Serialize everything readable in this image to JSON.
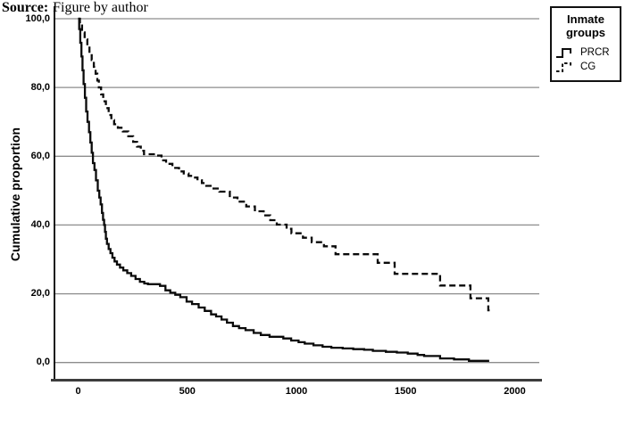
{
  "source": {
    "prefix": "Source:",
    "text": "Figure by author"
  },
  "y_axis": {
    "title": "Cumulative proportion",
    "ticks": [
      "100,0",
      "80,0",
      "60,0",
      "40,0",
      "20,0",
      "0,0"
    ],
    "tick_values": [
      100,
      80,
      60,
      40,
      20,
      0
    ]
  },
  "x_axis": {
    "ticks": [
      "0",
      "500",
      "1000",
      "1500",
      "2000"
    ],
    "tick_values": [
      0,
      500,
      1000,
      1500,
      2000
    ]
  },
  "legend": {
    "title": "Inmate groups",
    "items": [
      {
        "label": "PRCR",
        "style": "solid"
      },
      {
        "label": "CG",
        "style": "dashed"
      }
    ]
  },
  "colors": {
    "curve": "#0a0a0a",
    "gridline": "#8c8c8c",
    "axis_bottom": "#3d3d3d",
    "axis_left": "#000000",
    "background": "#ffffff"
  },
  "chart_data": {
    "type": "line",
    "subtype": "kaplan-meier-step",
    "interpolation": "step-after",
    "title": "",
    "xlabel": "",
    "ylabel": "Cumulative proportion",
    "xlim": [
      0,
      2000
    ],
    "ylim": [
      0,
      100
    ],
    "grid": "horizontal",
    "legend_position": "top-right",
    "series": [
      {
        "name": "PRCR",
        "line_style": "solid",
        "points": [
          [
            0,
            100
          ],
          [
            5,
            97
          ],
          [
            10,
            93
          ],
          [
            15,
            89
          ],
          [
            20,
            85
          ],
          [
            25,
            81
          ],
          [
            31,
            77
          ],
          [
            37,
            73
          ],
          [
            43,
            70
          ],
          [
            50,
            67
          ],
          [
            56,
            64
          ],
          [
            62,
            61
          ],
          [
            68,
            58
          ],
          [
            75,
            56
          ],
          [
            82,
            53
          ],
          [
            90,
            50
          ],
          [
            97,
            48
          ],
          [
            103,
            46
          ],
          [
            109,
            43.5
          ],
          [
            114,
            41.5
          ],
          [
            119,
            40
          ],
          [
            123,
            38
          ],
          [
            127,
            36
          ],
          [
            132,
            34.5
          ],
          [
            140,
            33
          ],
          [
            148,
            31.8
          ],
          [
            157,
            30.5
          ],
          [
            167,
            29.4
          ],
          [
            178,
            28.5
          ],
          [
            192,
            27.6
          ],
          [
            207,
            26.8
          ],
          [
            225,
            26
          ],
          [
            243,
            25.2
          ],
          [
            263,
            24.3
          ],
          [
            283,
            23.5
          ],
          [
            303,
            23
          ],
          [
            320,
            22.8
          ],
          [
            375,
            22.3
          ],
          [
            400,
            21
          ],
          [
            422,
            20.3
          ],
          [
            445,
            19.7
          ],
          [
            468,
            19
          ],
          [
            497,
            17.7
          ],
          [
            522,
            17
          ],
          [
            552,
            16
          ],
          [
            580,
            15
          ],
          [
            609,
            14
          ],
          [
            632,
            13.4
          ],
          [
            657,
            12.5
          ],
          [
            682,
            11.6
          ],
          [
            709,
            10.6
          ],
          [
            737,
            10
          ],
          [
            767,
            9.4
          ],
          [
            804,
            8.6
          ],
          [
            837,
            8
          ],
          [
            877,
            7.5
          ],
          [
            940,
            7
          ],
          [
            976,
            6.4
          ],
          [
            1010,
            5.9
          ],
          [
            1038,
            5.5
          ],
          [
            1078,
            5
          ],
          [
            1120,
            4.6
          ],
          [
            1160,
            4.3
          ],
          [
            1212,
            4.1
          ],
          [
            1260,
            3.9
          ],
          [
            1310,
            3.7
          ],
          [
            1350,
            3.4
          ],
          [
            1410,
            3.1
          ],
          [
            1460,
            2.9
          ],
          [
            1510,
            2.6
          ],
          [
            1555,
            2.2
          ],
          [
            1585,
            1.9
          ],
          [
            1658,
            1.2
          ],
          [
            1722,
            0.9
          ],
          [
            1790,
            0.5
          ],
          [
            1883,
            0.5
          ]
        ]
      },
      {
        "name": "CG",
        "line_style": "dashed",
        "points": [
          [
            0,
            100
          ],
          [
            8,
            98
          ],
          [
            18,
            96
          ],
          [
            30,
            94
          ],
          [
            42,
            92
          ],
          [
            52,
            90
          ],
          [
            62,
            88
          ],
          [
            72,
            86
          ],
          [
            80,
            84
          ],
          [
            88,
            82
          ],
          [
            95,
            80
          ],
          [
            105,
            78
          ],
          [
            115,
            76
          ],
          [
            127,
            74
          ],
          [
            140,
            72
          ],
          [
            152,
            70.5
          ],
          [
            165,
            69.3
          ],
          [
            182,
            68.3
          ],
          [
            205,
            67.2
          ],
          [
            230,
            65.8
          ],
          [
            252,
            64.2
          ],
          [
            270,
            62.8
          ],
          [
            287,
            61.6
          ],
          [
            302,
            60.6
          ],
          [
            358,
            60.2
          ],
          [
            382,
            58.8
          ],
          [
            403,
            57.8
          ],
          [
            432,
            56.6
          ],
          [
            462,
            55.6
          ],
          [
            484,
            55
          ],
          [
            506,
            54.3
          ],
          [
            525,
            53.8
          ],
          [
            547,
            53
          ],
          [
            567,
            52.2
          ],
          [
            587,
            51.4
          ],
          [
            615,
            50.6
          ],
          [
            647,
            49.7
          ],
          [
            695,
            48
          ],
          [
            730,
            46.8
          ],
          [
            770,
            45.4
          ],
          [
            810,
            44
          ],
          [
            850,
            42.8
          ],
          [
            880,
            41.4
          ],
          [
            910,
            40.1
          ],
          [
            955,
            38.9
          ],
          [
            977,
            37.6
          ],
          [
            1030,
            36.3
          ],
          [
            1070,
            35
          ],
          [
            1126,
            33.8
          ],
          [
            1179,
            31.5
          ],
          [
            1372,
            29
          ],
          [
            1450,
            25.8
          ],
          [
            1658,
            22.4
          ],
          [
            1797,
            18.7
          ],
          [
            1879,
            15.2
          ],
          [
            1891,
            15.2
          ]
        ]
      }
    ]
  }
}
